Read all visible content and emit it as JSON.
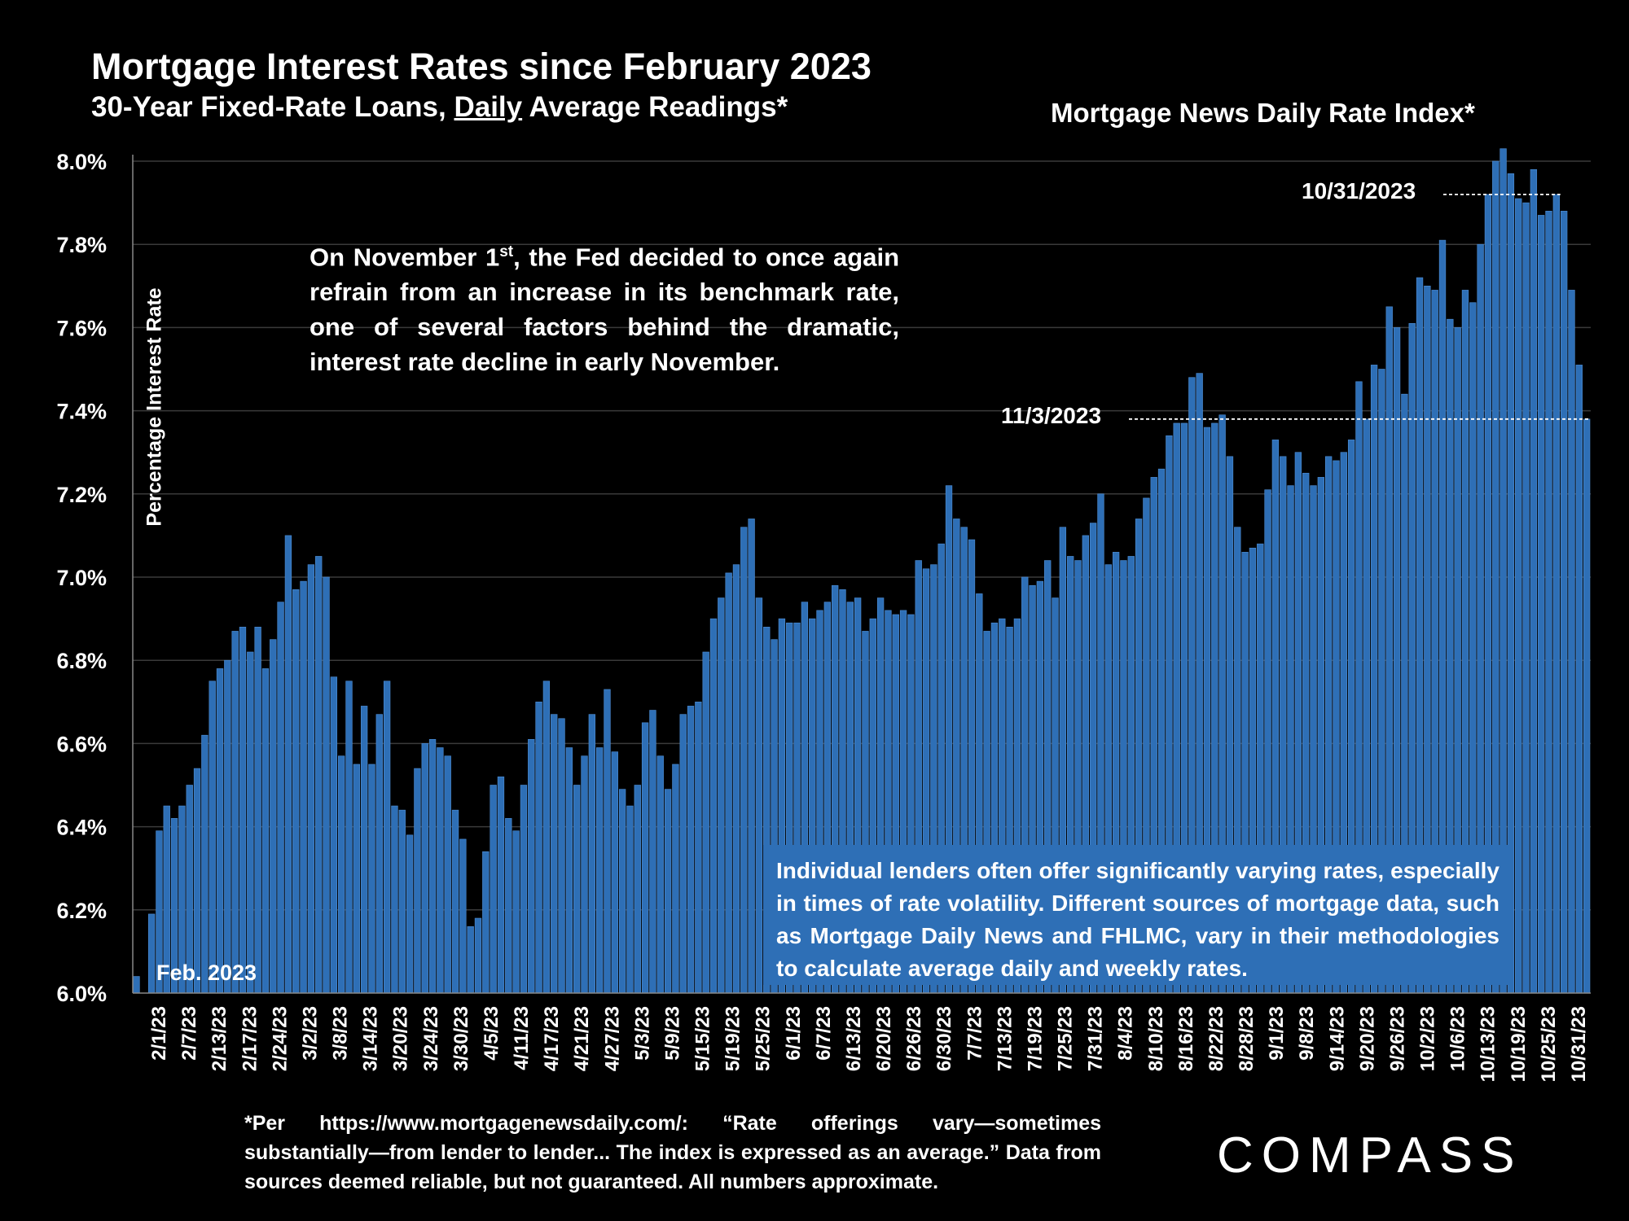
{
  "header": {
    "title": "Mortgage Interest Rates since February 2023",
    "subtitle_pre": "30-Year Fixed-Rate Loans, ",
    "subtitle_underlined": "Daily",
    "subtitle_post": " Average Readings*",
    "index_label": "Mortgage News Daily Rate Index*"
  },
  "annotations": {
    "fed_note_pre": "On November 1",
    "fed_note_sup": "st",
    "fed_note_post": ", the Fed decided to once again refrain from an increase in its benchmark rate, one of several factors behind the dramatic, interest rate decline in early November.",
    "lenders_note": "Individual lenders often offer significantly varying rates, especially in times of rate volatility. Different sources of mortgage data, such as Mortgage Daily News and FHLMC, vary in their methodologies to calculate average daily and weekly rates.",
    "feb_label": "Feb. 2023",
    "date_oct31": "10/31/2023",
    "date_nov3": "11/3/2023"
  },
  "footnote": "*Per https://www.mortgagenewsdaily.com/: “Rate offerings vary—sometimes substantially—from lender to lender... The index is expressed as an average.” Data from sources deemed reliable, but not guaranteed. All numbers approximate.",
  "logo": {
    "text": "COMPASS",
    "color": "#ffffff"
  },
  "colors": {
    "bar": "#2e6fb6",
    "bar_edge": "#4f8fd6",
    "grid": "#3a3a3a",
    "axis": "#888888"
  },
  "chart_data": {
    "type": "bar",
    "title": "Mortgage Interest Rates since February 2023",
    "ylabel": "Percentage Interest  Rate",
    "ylim": [
      6.0,
      8.0
    ],
    "yticks": [
      "6.0%",
      "6.2%",
      "6.4%",
      "6.6%",
      "6.8%",
      "7.0%",
      "7.2%",
      "7.4%",
      "7.6%",
      "7.8%",
      "8.0%"
    ],
    "x_tick_labels": [
      "2/1/23",
      "2/7/23",
      "2/13/23",
      "2/17/23",
      "2/24/23",
      "3/2/23",
      "3/8/23",
      "3/14/23",
      "3/20/23",
      "3/24/23",
      "3/30/23",
      "4/5/23",
      "4/11/23",
      "4/17/23",
      "4/21/23",
      "4/27/23",
      "5/3/23",
      "5/9/23",
      "5/15/23",
      "5/19/23",
      "5/25/23",
      "6/1/23",
      "6/7/23",
      "6/13/23",
      "6/20/23",
      "6/26/23",
      "6/30/23",
      "7/7/23",
      "7/13/23",
      "7/19/23",
      "7/25/23",
      "7/31/23",
      "8/4/23",
      "8/10/23",
      "8/16/23",
      "8/22/23",
      "8/28/23",
      "9/1/23",
      "9/8/23",
      "9/14/23",
      "9/20/23",
      "9/26/23",
      "10/2/23",
      "10/6/23",
      "10/13/23",
      "10/19/23",
      "10/25/23",
      "10/31/23"
    ],
    "values": [
      6.04,
      6.0,
      6.19,
      6.39,
      6.45,
      6.42,
      6.45,
      6.5,
      6.54,
      6.62,
      6.75,
      6.78,
      6.8,
      6.87,
      6.88,
      6.82,
      6.88,
      6.78,
      6.85,
      6.94,
      7.1,
      6.97,
      6.99,
      7.03,
      7.05,
      7.0,
      6.76,
      6.57,
      6.75,
      6.55,
      6.69,
      6.55,
      6.67,
      6.75,
      6.45,
      6.44,
      6.38,
      6.54,
      6.6,
      6.61,
      6.59,
      6.57,
      6.44,
      6.37,
      6.16,
      6.18,
      6.34,
      6.5,
      6.52,
      6.42,
      6.39,
      6.5,
      6.61,
      6.7,
      6.75,
      6.67,
      6.66,
      6.59,
      6.5,
      6.57,
      6.67,
      6.59,
      6.73,
      6.58,
      6.49,
      6.45,
      6.5,
      6.65,
      6.68,
      6.57,
      6.49,
      6.55,
      6.67,
      6.69,
      6.7,
      6.82,
      6.9,
      6.95,
      7.01,
      7.03,
      7.12,
      7.14,
      6.95,
      6.88,
      6.85,
      6.9,
      6.89,
      6.89,
      6.94,
      6.9,
      6.92,
      6.94,
      6.98,
      6.97,
      6.94,
      6.95,
      6.87,
      6.9,
      6.95,
      6.92,
      6.91,
      6.92,
      6.91,
      7.04,
      7.02,
      7.03,
      7.08,
      7.22,
      7.14,
      7.12,
      7.09,
      6.96,
      6.87,
      6.89,
      6.9,
      6.88,
      6.9,
      7.0,
      6.98,
      6.99,
      7.04,
      6.95,
      7.12,
      7.05,
      7.04,
      7.1,
      7.13,
      7.2,
      7.03,
      7.06,
      7.04,
      7.05,
      7.14,
      7.19,
      7.24,
      7.26,
      7.34,
      7.37,
      7.37,
      7.48,
      7.49,
      7.36,
      7.37,
      7.39,
      7.29,
      7.12,
      7.06,
      7.07,
      7.08,
      7.21,
      7.33,
      7.29,
      7.22,
      7.3,
      7.25,
      7.22,
      7.24,
      7.29,
      7.28,
      7.3,
      7.33,
      7.47,
      7.38,
      7.51,
      7.5,
      7.65,
      7.6,
      7.44,
      7.61,
      7.72,
      7.7,
      7.69,
      7.81,
      7.62,
      7.6,
      7.69,
      7.66,
      7.8,
      7.92,
      8.0,
      8.03,
      7.97,
      7.91,
      7.9,
      7.98,
      7.87,
      7.88,
      7.92,
      7.88,
      7.69,
      7.51,
      7.38
    ]
  }
}
